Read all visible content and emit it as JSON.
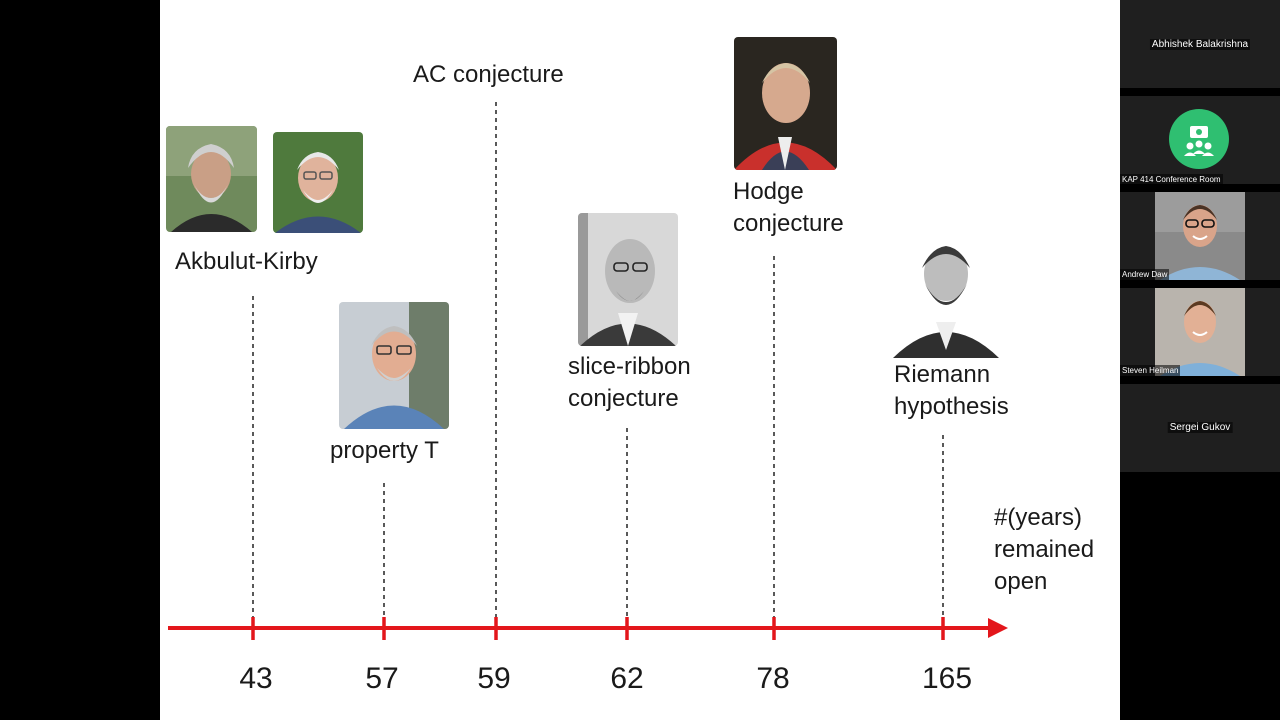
{
  "slide": {
    "title_ac": "AC conjecture",
    "label_akbulut": "Akbulut-Kirby",
    "label_property_t": "property T",
    "label_slice_1": "slice-ribbon",
    "label_slice_2": "conjecture",
    "label_hodge_1": "Hodge",
    "label_hodge_2": "conjecture",
    "label_riemann_1": "Riemann",
    "label_riemann_2": "hypothesis",
    "axis_label_1": "#(years)",
    "axis_label_2": "remained",
    "axis_label_3": "open",
    "ticks": [
      "43",
      "57",
      "59",
      "62",
      "78",
      "165"
    ],
    "accent_color": "#e3161b"
  },
  "participants": [
    {
      "name": "Abhishek Balakrishna",
      "video": false
    },
    {
      "name": "KAP 414 Conference Room",
      "video": false,
      "icon": "conference-room-icon",
      "icon_color": "#2fbf71"
    },
    {
      "name": "Andrew Daw",
      "video": true
    },
    {
      "name": "Steven Heilman",
      "video": true
    },
    {
      "name": "Sergei Gukov",
      "video": false
    }
  ]
}
